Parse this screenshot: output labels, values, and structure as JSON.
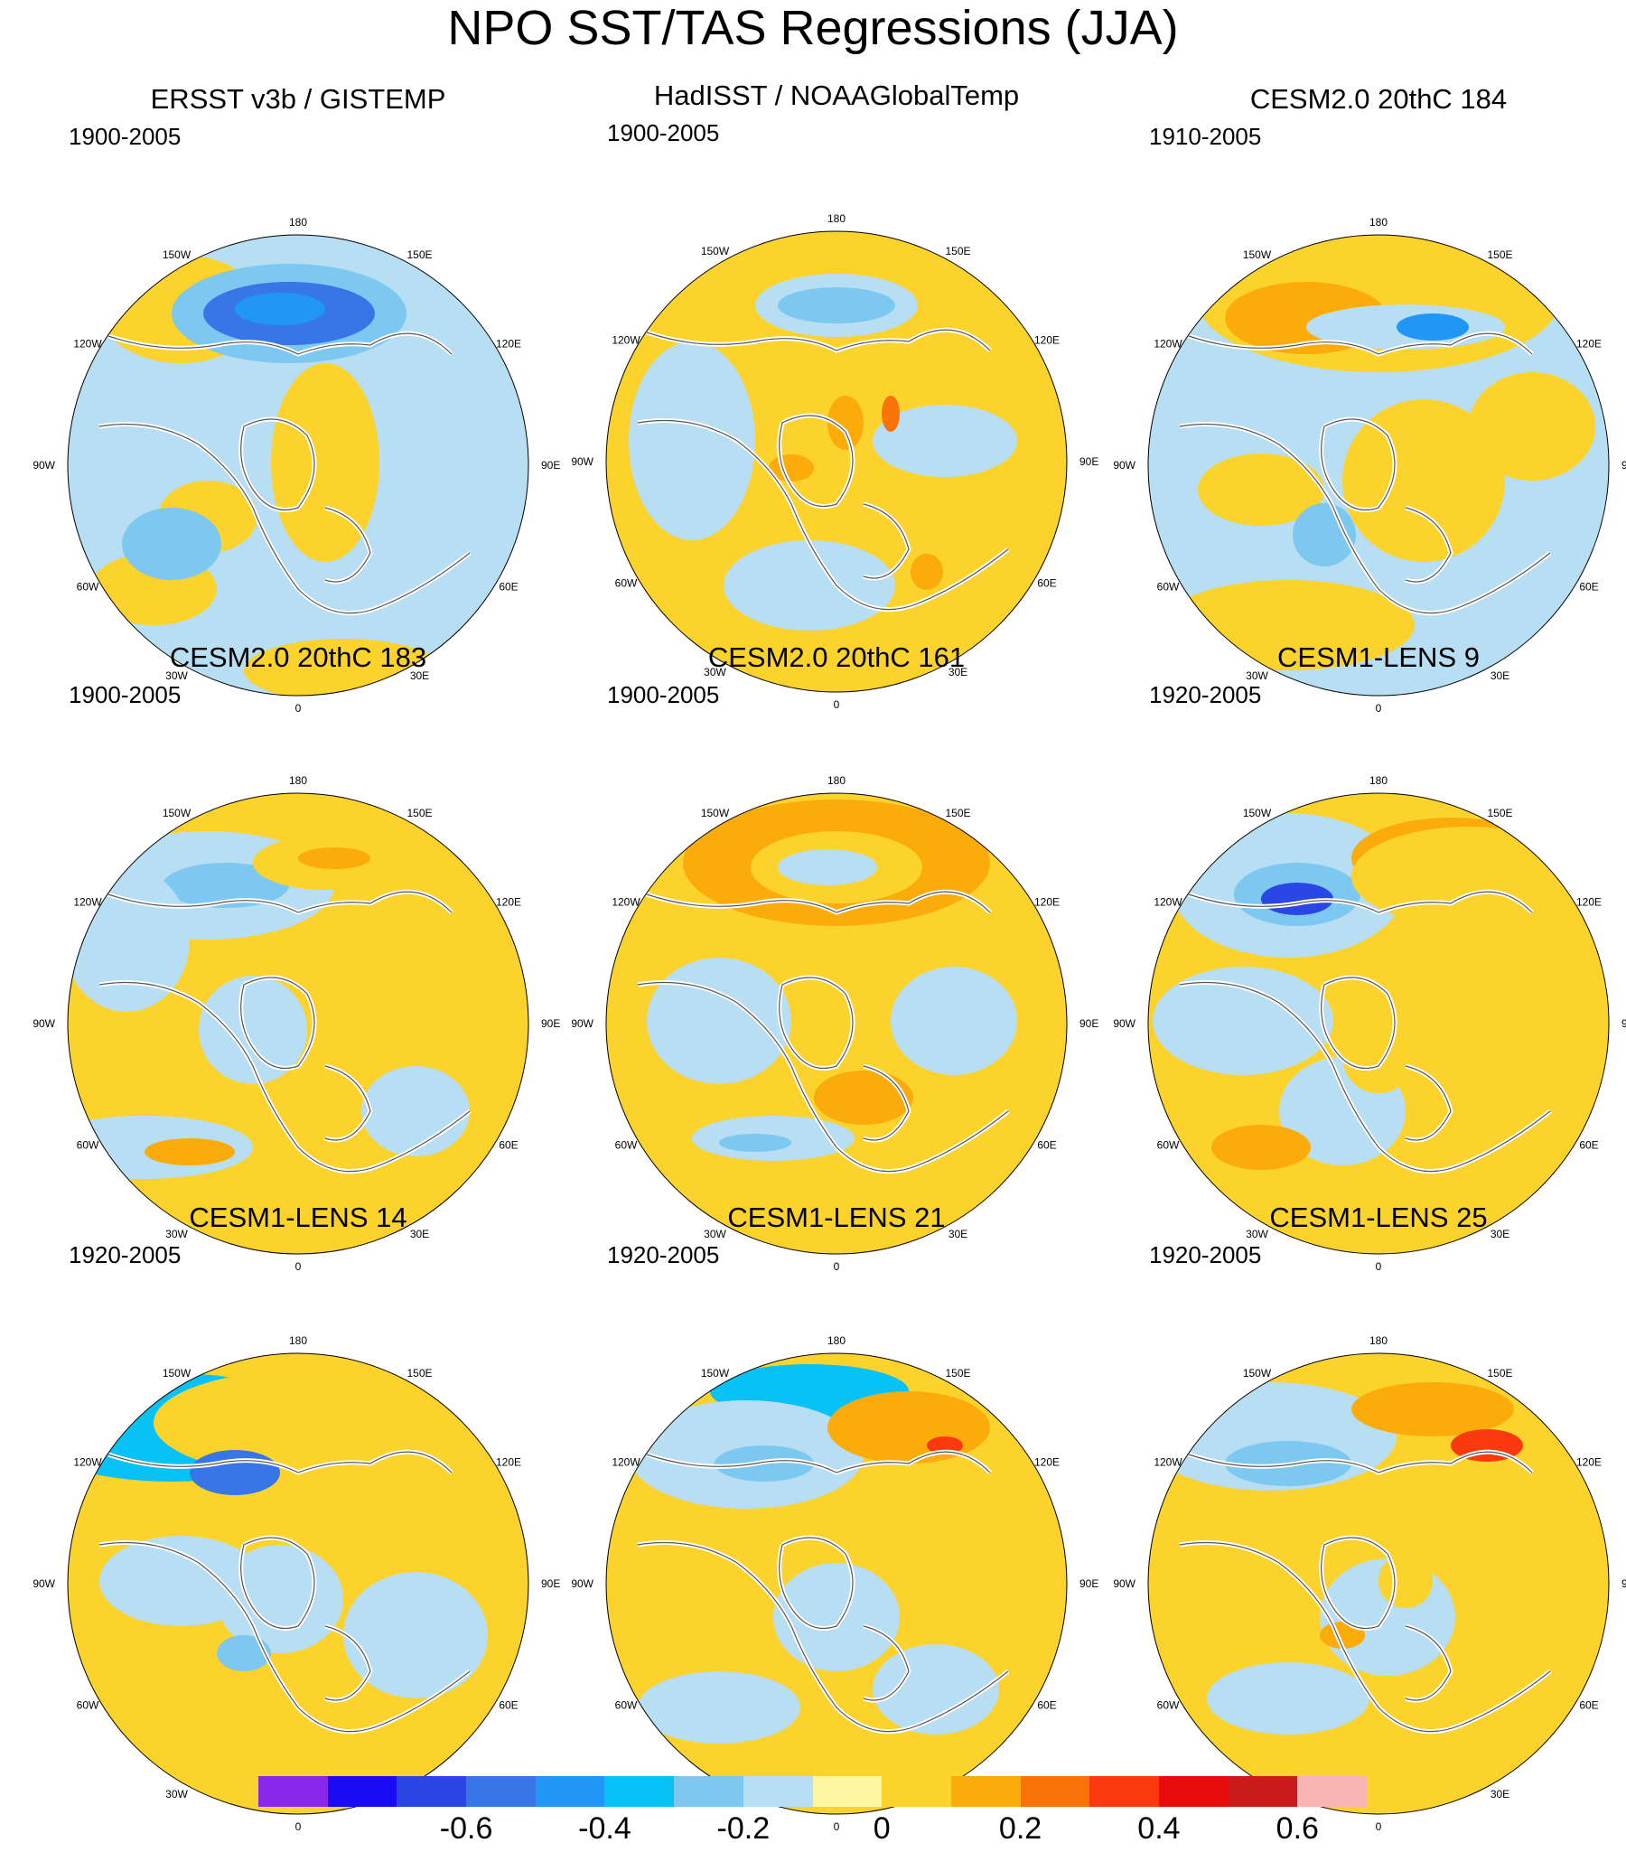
{
  "title": "NPO SST/TAS Regressions (JJA)",
  "longitude_labels": [
    "180",
    "150E",
    "120E",
    "90E",
    "60E",
    "30E",
    "0",
    "30W",
    "60W",
    "90W",
    "120W",
    "150W"
  ],
  "panels": [
    {
      "title": "ERSST v3b / GISTEMP",
      "period": "1900-2005"
    },
    {
      "title": "HadISST / NOAAGlobalTemp",
      "period": "1900-2005"
    },
    {
      "title": "CESM2.0 20thC 184",
      "period": "1910-2005"
    },
    {
      "title": "CESM2.0 20thC 183",
      "period": "1900-2005"
    },
    {
      "title": "CESM2.0 20thC 161",
      "period": "1900-2005"
    },
    {
      "title": "CESM1-LENS 9",
      "period": "1920-2005"
    },
    {
      "title": "CESM1-LENS 14",
      "period": "1920-2005"
    },
    {
      "title": "CESM1-LENS 21",
      "period": "1920-2005"
    },
    {
      "title": "CESM1-LENS 25",
      "period": "1920-2005"
    }
  ],
  "colorbar": {
    "colors": [
      "#8a26e8",
      "#1a0cf2",
      "#2a46e4",
      "#3676e6",
      "#2097f4",
      "#09c2f5",
      "#7cc8f0",
      "#b7def2",
      "#fdf6a0",
      "#fcd22c",
      "#fbab0a",
      "#f97309",
      "#fa3a0e",
      "#e80b0b",
      "#c91b1b",
      "#fbb4b4"
    ],
    "tick_labels": [
      "-0.6",
      "-0.4",
      "-0.2",
      "0",
      "0.2",
      "0.4",
      "0.6"
    ],
    "tick_positions": [
      3,
      5,
      7,
      9,
      11,
      13,
      15
    ]
  }
}
